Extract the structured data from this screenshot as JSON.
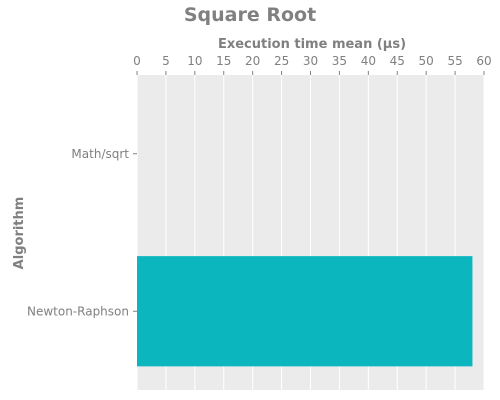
{
  "chart_data": {
    "type": "bar",
    "orientation": "horizontal",
    "title": "Square Root",
    "xlabel": "Execution time mean (µs)",
    "ylabel": "Algorithm",
    "categories": [
      "Math/sqrt",
      "Newton-Raphson"
    ],
    "values": [
      0,
      58
    ],
    "xlim": [
      0,
      60
    ],
    "x_ticks": [
      0,
      5,
      10,
      15,
      20,
      25,
      30,
      35,
      40,
      45,
      50,
      55,
      60
    ],
    "x_axis_position": "top",
    "grid": true,
    "legend": "none",
    "bar_color": "#0cb6be",
    "plot_background": "#ebebeb",
    "grid_color": "#ffffff",
    "text_color": "#808080"
  }
}
